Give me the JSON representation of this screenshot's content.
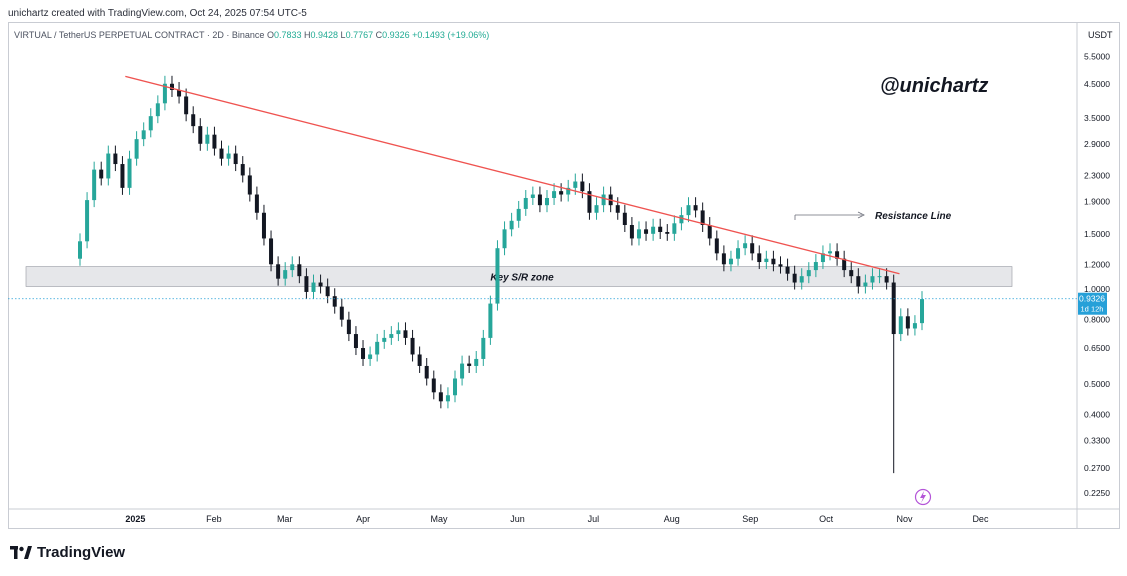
{
  "header": {
    "credit": "unichartz created with TradingView.com, Oct 24, 2025 07:54 UTC-5",
    "symbol": "VIRTUAL / TetherUS PERPETUAL CONTRACT · 2D · Binance",
    "open_label": "O",
    "open": "0.7833",
    "high_label": "H",
    "high": "0.9428",
    "low_label": "L",
    "low": "0.7767",
    "close_label": "C",
    "close": "0.9326",
    "change": "+0.1493 (+19.06%)"
  },
  "watermark": "@unichartz",
  "axis_unit": "USDT",
  "footer": {
    "brand": "TradingView"
  },
  "colors": {
    "up": "#26a69a",
    "down": "#131722",
    "trendline": "#ef5350",
    "zone": "#e6e7ea",
    "last_price": "#26a0d8"
  },
  "chart_data": {
    "type": "candlestick",
    "y_scale": "log",
    "y_ticks": [
      "5.5000",
      "4.5000",
      "3.5000",
      "2.9000",
      "2.3000",
      "1.9000",
      "1.5000",
      "1.2000",
      "1.0000",
      "0.8000",
      "0.6500",
      "0.5000",
      "0.4000",
      "0.3300",
      "0.2700",
      "0.2250"
    ],
    "x_ticks": [
      "2025",
      "Feb",
      "Mar",
      "Apr",
      "May",
      "Jun",
      "Jul",
      "Aug",
      "Sep",
      "Oct",
      "Nov",
      "Dec"
    ],
    "ylim": [
      0.2,
      6.2
    ],
    "last_price": {
      "value": "0.9326",
      "countdown": "1d 12h"
    },
    "annotations": {
      "zone_label": "Key S/R zone",
      "resistance_label": "Resistance Line",
      "zone_range": [
        1.02,
        1.18
      ],
      "resistance_line": [
        {
          "date": "2024-12-28",
          "price": 4.75
        },
        {
          "date": "2025-10-30",
          "price": 1.12
        }
      ]
    },
    "closes": [
      1.42,
      1.92,
      2.4,
      2.25,
      2.7,
      2.5,
      2.1,
      2.6,
      3.0,
      3.2,
      3.55,
      3.9,
      4.5,
      4.3,
      4.1,
      3.6,
      3.3,
      2.9,
      3.1,
      2.8,
      2.6,
      2.7,
      2.5,
      2.3,
      2.0,
      1.75,
      1.45,
      1.2,
      1.08,
      1.15,
      1.2,
      1.1,
      0.98,
      1.05,
      1.02,
      0.95,
      0.88,
      0.8,
      0.72,
      0.65,
      0.6,
      0.62,
      0.68,
      0.7,
      0.72,
      0.74,
      0.7,
      0.62,
      0.57,
      0.52,
      0.47,
      0.44,
      0.46,
      0.52,
      0.58,
      0.57,
      0.6,
      0.7,
      0.9,
      1.35,
      1.55,
      1.65,
      1.8,
      1.95,
      2.0,
      1.85,
      1.95,
      2.05,
      2.0,
      2.1,
      2.2,
      2.05,
      1.75,
      1.85,
      2.0,
      1.85,
      1.75,
      1.6,
      1.45,
      1.55,
      1.5,
      1.58,
      1.52,
      1.5,
      1.62,
      1.72,
      1.85,
      1.78,
      1.6,
      1.45,
      1.3,
      1.2,
      1.25,
      1.35,
      1.4,
      1.3,
      1.22,
      1.25,
      1.2,
      1.18,
      1.12,
      1.05,
      1.1,
      1.15,
      1.22,
      1.3,
      1.32,
      1.25,
      1.15,
      1.1,
      1.02,
      1.05,
      1.1,
      1.1,
      1.05,
      0.72,
      0.82,
      0.75,
      0.78,
      0.93
    ]
  }
}
